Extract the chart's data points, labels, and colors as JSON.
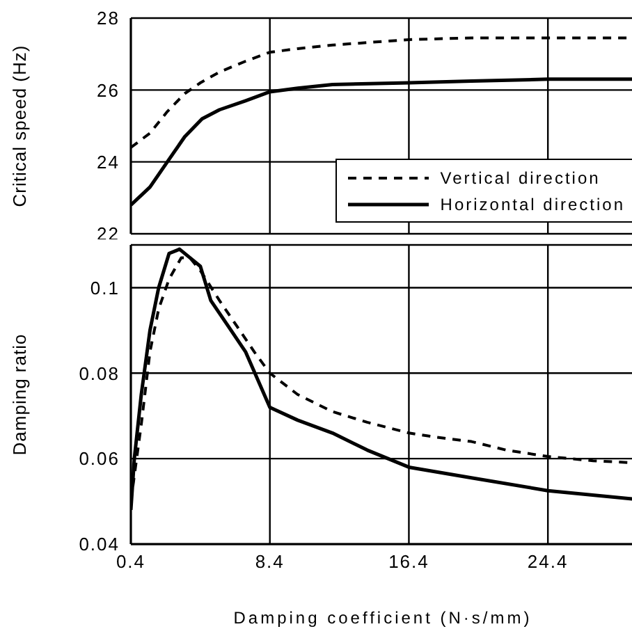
{
  "chart_data": [
    {
      "type": "line",
      "ylabel": "Critical speed (Hz)",
      "xlim": [
        0.4,
        29.4
      ],
      "xticks": [
        0.4,
        8.4,
        16.4,
        24.4
      ],
      "ylim": [
        22,
        28
      ],
      "yticks": [
        22,
        24,
        26,
        28
      ],
      "grid": true,
      "legend": "bottom right",
      "tick_labels": "y",
      "marker": "none",
      "series": [
        {
          "name": "Vertical direction",
          "color": "#000000",
          "line_style": "dashed",
          "x": [
            0.4,
            1.5,
            2.5,
            3.5,
            4.4,
            5.5,
            7,
            8.4,
            10,
            12,
            16.4,
            20,
            24.4,
            29.4
          ],
          "values": [
            24.4,
            24.8,
            25.4,
            25.9,
            26.2,
            26.5,
            26.8,
            27.05,
            27.15,
            27.25,
            27.4,
            27.45,
            27.45,
            27.45
          ]
        },
        {
          "name": "Horizontal direction",
          "color": "#000000",
          "line_style": "solid",
          "x": [
            0.4,
            1.5,
            2.5,
            3.5,
            4.5,
            5.5,
            7,
            8.4,
            10,
            12,
            16.4,
            20,
            24.4,
            29.4
          ],
          "values": [
            22.8,
            23.3,
            24.0,
            24.7,
            25.2,
            25.45,
            25.7,
            25.95,
            26.05,
            26.15,
            26.2,
            26.25,
            26.3,
            26.3
          ]
        }
      ]
    },
    {
      "type": "line",
      "xlabel": "Damping coefficient (N·s/mm)",
      "ylabel": "Damping ratio",
      "xlim": [
        0.4,
        29.4
      ],
      "xticks": [
        0.4,
        8.4,
        16.4,
        24.4
      ],
      "ylim": [
        0.04,
        0.11
      ],
      "yticks": [
        0.04,
        0.06,
        0.08,
        0.1
      ],
      "grid": true,
      "marker": "none",
      "series": [
        {
          "color": "#000000",
          "line_style": "dashed",
          "x": [
            0.4,
            1,
            1.5,
            2,
            2.6,
            3.3,
            3.8,
            4.4,
            5.5,
            6.5,
            7.5,
            8.4,
            10,
            12,
            14,
            16.4,
            18,
            20,
            22,
            24.4,
            27,
            29.4
          ],
          "values": [
            0.05,
            0.068,
            0.085,
            0.095,
            0.102,
            0.107,
            0.107,
            0.104,
            0.097,
            0.091,
            0.085,
            0.08,
            0.075,
            0.071,
            0.0685,
            0.066,
            0.065,
            0.064,
            0.062,
            0.0605,
            0.0595,
            0.059
          ]
        },
        {
          "color": "#000000",
          "line_style": "solid",
          "x": [
            0.4,
            0.6,
            1,
            1.5,
            2,
            2.6,
            3.2,
            3.8,
            4.4,
            5,
            6,
            7,
            8.4,
            10,
            12,
            14,
            16.4,
            20,
            24.4,
            29.4
          ],
          "values": [
            0.048,
            0.06,
            0.075,
            0.09,
            0.1,
            0.108,
            0.109,
            0.107,
            0.105,
            0.097,
            0.091,
            0.085,
            0.072,
            0.069,
            0.066,
            0.062,
            0.058,
            0.0555,
            0.0525,
            0.0505
          ]
        }
      ]
    }
  ]
}
